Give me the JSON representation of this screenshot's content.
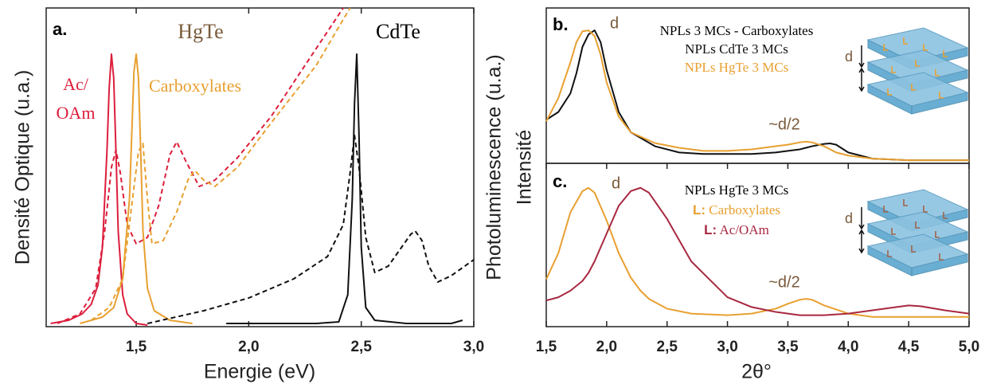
{
  "chart_data": [
    {
      "type": "line",
      "xlabel": "Energie (eV)",
      "ylabel": "Densité Optique (u.a.)",
      "xlim": [
        1.1,
        3.0
      ],
      "ylim": [
        0,
        1
      ],
      "xticks": [
        {
          "value": 1.5,
          "label": "1,5"
        },
        {
          "value": 2.0,
          "label": "2,0"
        },
        {
          "value": 2.5,
          "label": "2,5"
        },
        {
          "value": 3.0,
          "label": "3,0"
        }
      ],
      "annotations": [
        "a.",
        "HgTe",
        "CdTe",
        "Ac/",
        "OAm",
        "Carboxylates"
      ],
      "series": [
        {
          "color": "#dc1e3c",
          "dashed": false,
          "x": [
            1.12,
            1.2,
            1.26,
            1.3,
            1.33,
            1.35,
            1.37,
            1.38,
            1.39,
            1.4,
            1.41,
            1.42,
            1.44,
            1.46,
            1.5,
            1.55
          ],
          "values": [
            0.01,
            0.02,
            0.04,
            0.07,
            0.13,
            0.25,
            0.55,
            0.75,
            0.855,
            0.78,
            0.55,
            0.3,
            0.1,
            0.04,
            0.01,
            0.005
          ]
        },
        {
          "color": "#dc1e3c",
          "dashed": true,
          "x": [
            1.15,
            1.25,
            1.32,
            1.36,
            1.39,
            1.41,
            1.43,
            1.46,
            1.5,
            1.55,
            1.6,
            1.65,
            1.68,
            1.72,
            1.78,
            1.85,
            1.95,
            2.1,
            2.25,
            2.42
          ],
          "values": [
            0.01,
            0.04,
            0.12,
            0.3,
            0.5,
            0.555,
            0.48,
            0.32,
            0.26,
            0.28,
            0.38,
            0.54,
            0.58,
            0.52,
            0.44,
            0.46,
            0.53,
            0.66,
            0.82,
            1.0
          ]
        },
        {
          "color": "#e8a030",
          "dashed": false,
          "x": [
            1.25,
            1.35,
            1.4,
            1.44,
            1.47,
            1.48,
            1.49,
            1.5,
            1.51,
            1.52,
            1.53,
            1.55,
            1.58,
            1.65,
            1.75
          ],
          "values": [
            0.01,
            0.03,
            0.06,
            0.15,
            0.4,
            0.6,
            0.8,
            0.855,
            0.78,
            0.55,
            0.3,
            0.12,
            0.05,
            0.02,
            0.01
          ]
        },
        {
          "color": "#e8a030",
          "dashed": true,
          "x": [
            1.3,
            1.38,
            1.44,
            1.48,
            1.51,
            1.53,
            1.55,
            1.57,
            1.62,
            1.68,
            1.73,
            1.76,
            1.8,
            1.85,
            1.95,
            2.1,
            2.3,
            2.45
          ],
          "values": [
            0.02,
            0.06,
            0.15,
            0.38,
            0.55,
            0.575,
            0.4,
            0.26,
            0.27,
            0.36,
            0.46,
            0.49,
            0.46,
            0.44,
            0.5,
            0.64,
            0.82,
            1.0
          ]
        },
        {
          "color": "#111111",
          "dashed": false,
          "x": [
            1.9,
            2.1,
            2.3,
            2.4,
            2.44,
            2.46,
            2.47,
            2.48,
            2.49,
            2.5,
            2.52,
            2.56,
            2.7,
            2.9,
            2.95
          ],
          "values": [
            0.01,
            0.01,
            0.01,
            0.015,
            0.1,
            0.4,
            0.7,
            0.855,
            0.6,
            0.25,
            0.06,
            0.02,
            0.01,
            0.01,
            0.02
          ]
        },
        {
          "color": "#111111",
          "dashed": true,
          "x": [
            1.55,
            1.8,
            2.0,
            2.2,
            2.35,
            2.42,
            2.45,
            2.47,
            2.49,
            2.52,
            2.56,
            2.62,
            2.68,
            2.72,
            2.74,
            2.77,
            2.8,
            2.84,
            2.9,
            3.0
          ],
          "values": [
            0.01,
            0.05,
            0.09,
            0.15,
            0.22,
            0.32,
            0.48,
            0.6,
            0.5,
            0.28,
            0.17,
            0.19,
            0.25,
            0.29,
            0.3,
            0.27,
            0.19,
            0.14,
            0.16,
            0.21
          ]
        }
      ]
    },
    {
      "type": "line",
      "ylabel": "Photoluminescence (u.a.)",
      "title": "NPLs 3 MCs - Carboxylates",
      "xlim": [
        1.5,
        5.0
      ],
      "ylim": [
        0,
        1
      ],
      "annotations": [
        "b.",
        "d",
        "~d/2",
        "d"
      ],
      "series": [
        {
          "name": "NPLs CdTe 3 MCs",
          "color": "#111111",
          "dashed": false,
          "x": [
            1.5,
            1.6,
            1.7,
            1.75,
            1.8,
            1.85,
            1.9,
            1.95,
            2.0,
            2.1,
            2.2,
            2.4,
            2.6,
            2.8,
            3.0,
            3.2,
            3.4,
            3.5,
            3.6,
            3.65,
            3.7,
            3.8,
            3.85,
            3.9,
            4.0,
            4.2,
            4.5,
            5.0
          ],
          "values": [
            0.28,
            0.33,
            0.45,
            0.58,
            0.75,
            0.83,
            0.856,
            0.78,
            0.6,
            0.33,
            0.2,
            0.11,
            0.07,
            0.06,
            0.06,
            0.06,
            0.07,
            0.08,
            0.09,
            0.1,
            0.11,
            0.125,
            0.128,
            0.12,
            0.07,
            0.03,
            0.02,
            0.02
          ]
        },
        {
          "name": "NPLs HgTe 3 MCs",
          "color": "#e8a030",
          "dashed": false,
          "x": [
            1.5,
            1.6,
            1.7,
            1.75,
            1.8,
            1.85,
            1.9,
            1.95,
            2.0,
            2.1,
            2.2,
            2.4,
            2.6,
            2.8,
            3.0,
            3.2,
            3.4,
            3.5,
            3.6,
            3.65,
            3.7,
            3.8,
            3.85,
            3.9,
            4.0,
            4.2,
            4.5,
            5.0
          ],
          "values": [
            0.27,
            0.42,
            0.65,
            0.78,
            0.85,
            0.856,
            0.82,
            0.7,
            0.52,
            0.3,
            0.2,
            0.13,
            0.1,
            0.08,
            0.08,
            0.09,
            0.11,
            0.12,
            0.135,
            0.14,
            0.135,
            0.11,
            0.09,
            0.07,
            0.05,
            0.03,
            0.02,
            0.02
          ]
        }
      ]
    },
    {
      "type": "line",
      "xlabel": "2θ°",
      "ylabel": "Intensité",
      "title": "NPLs HgTe 3 MCs",
      "legend_symbol": "L:",
      "xlim": [
        1.5,
        5.0
      ],
      "ylim": [
        0,
        1
      ],
      "xticks": [
        {
          "value": 1.5,
          "label": "1,5"
        },
        {
          "value": 2.0,
          "label": "2,0"
        },
        {
          "value": 2.5,
          "label": "2,5"
        },
        {
          "value": 3.0,
          "label": "3,0"
        },
        {
          "value": 3.5,
          "label": "3,5"
        },
        {
          "value": 4.0,
          "label": "4,0"
        },
        {
          "value": 4.5,
          "label": "4,5"
        },
        {
          "value": 5.0,
          "label": "5,0"
        }
      ],
      "annotations": [
        "c.",
        "d",
        "~d/2",
        "d"
      ],
      "series": [
        {
          "name": "Carboxylates",
          "color": "#e8a030",
          "dashed": false,
          "x": [
            1.5,
            1.6,
            1.7,
            1.8,
            1.85,
            1.9,
            2.0,
            2.1,
            2.2,
            2.28,
            2.35,
            2.5,
            2.7,
            3.0,
            3.2,
            3.4,
            3.5,
            3.6,
            3.65,
            3.7,
            3.8,
            4.0,
            4.2,
            4.4,
            4.5,
            4.6,
            4.8,
            5.0
          ],
          "values": [
            0.29,
            0.45,
            0.7,
            0.83,
            0.85,
            0.82,
            0.65,
            0.45,
            0.3,
            0.22,
            0.17,
            0.11,
            0.08,
            0.07,
            0.08,
            0.11,
            0.14,
            0.165,
            0.17,
            0.165,
            0.13,
            0.08,
            0.06,
            0.06,
            0.06,
            0.06,
            0.06,
            0.06
          ]
        },
        {
          "name": "Ac/OAm",
          "color": "#a82840",
          "dashed": false,
          "x": [
            1.5,
            1.6,
            1.7,
            1.8,
            1.85,
            1.9,
            2.0,
            2.1,
            2.2,
            2.28,
            2.35,
            2.5,
            2.7,
            3.0,
            3.2,
            3.4,
            3.5,
            3.6,
            3.65,
            3.7,
            3.8,
            4.0,
            4.2,
            4.4,
            4.5,
            4.6,
            4.8,
            5.0
          ],
          "values": [
            0.16,
            0.18,
            0.22,
            0.28,
            0.33,
            0.4,
            0.57,
            0.74,
            0.83,
            0.85,
            0.82,
            0.66,
            0.4,
            0.18,
            0.12,
            0.09,
            0.08,
            0.07,
            0.07,
            0.07,
            0.07,
            0.08,
            0.1,
            0.12,
            0.13,
            0.125,
            0.1,
            0.08
          ]
        }
      ]
    }
  ]
}
